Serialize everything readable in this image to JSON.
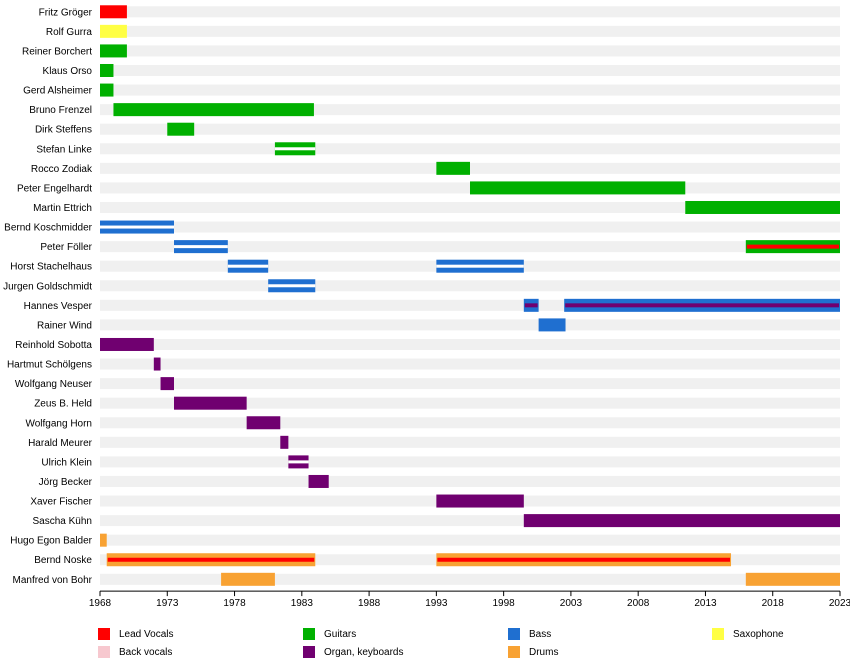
{
  "chart_data": {
    "type": "timeline",
    "title": "",
    "xlabel": "",
    "ylabel": "",
    "xlim": [
      1968,
      2023
    ],
    "x_ticks": [
      1968,
      1973,
      1978,
      1983,
      1988,
      1993,
      1998,
      2003,
      2008,
      2013,
      2018,
      2023
    ],
    "legend_position": "bottom",
    "roles": [
      {
        "id": "lead_vocals",
        "name": "Lead Vocals",
        "color": "#ff0000"
      },
      {
        "id": "back_vocals",
        "name": "Back vocals",
        "color": "#f7c8cf"
      },
      {
        "id": "guitars",
        "name": "Guitars",
        "color": "#00b000"
      },
      {
        "id": "organ",
        "name": "Organ, keyboards",
        "color": "#700070"
      },
      {
        "id": "bass",
        "name": "Bass",
        "color": "#1f6fd0"
      },
      {
        "id": "drums",
        "name": "Drums",
        "color": "#f8a233"
      },
      {
        "id": "saxophone",
        "name": "Saxophone",
        "color": "#ffff44"
      }
    ],
    "members": [
      {
        "name": "Fritz Gröger",
        "periods": [
          {
            "role": "lead_vocals",
            "start": 1968.0,
            "end": 1970.0
          }
        ]
      },
      {
        "name": "Rolf Gurra",
        "periods": [
          {
            "role": "saxophone",
            "start": 1968.0,
            "end": 1970.0
          }
        ]
      },
      {
        "name": "Reiner Borchert",
        "periods": [
          {
            "role": "guitars",
            "start": 1968.0,
            "end": 1970.0
          }
        ]
      },
      {
        "name": "Klaus Orso",
        "periods": [
          {
            "role": "guitars",
            "start": 1968.0,
            "end": 1969.0
          }
        ]
      },
      {
        "name": "Gerd Alsheimer",
        "periods": [
          {
            "role": "guitars",
            "start": 1968.0,
            "end": 1969.0
          }
        ]
      },
      {
        "name": "Bruno Frenzel",
        "periods": [
          {
            "role": "guitars",
            "start": 1969.0,
            "end": 1983.9
          }
        ]
      },
      {
        "name": "Dirk Steffens",
        "periods": [
          {
            "role": "guitars",
            "start": 1973.0,
            "end": 1975.0
          }
        ]
      },
      {
        "name": "Stefan Linke",
        "periods": [
          {
            "role": "guitars",
            "start": 1981.0,
            "end": 1984.0,
            "split": "guitars"
          }
        ]
      },
      {
        "name": "Rocco Zodiak",
        "periods": [
          {
            "role": "guitars",
            "start": 1993.0,
            "end": 1995.5
          }
        ]
      },
      {
        "name": "Peter Engelhardt",
        "periods": [
          {
            "role": "guitars",
            "start": 1995.5,
            "end": 2011.5
          }
        ]
      },
      {
        "name": "Martin Ettrich",
        "periods": [
          {
            "role": "guitars",
            "start": 2011.5,
            "end": 2023.5
          }
        ]
      },
      {
        "name": "Bernd Koschmidder",
        "periods": [
          {
            "role": "bass",
            "start": 1968.0,
            "end": 1973.5,
            "split": "bass"
          }
        ]
      },
      {
        "name": "Peter Föller",
        "periods": [
          {
            "role": "bass",
            "start": 1973.5,
            "end": 1977.5,
            "split": "bass"
          },
          {
            "role": "guitars",
            "start": 2016.0,
            "end": 2023.5,
            "stripe": "lead_vocals"
          }
        ]
      },
      {
        "name": "Horst Stachelhaus",
        "periods": [
          {
            "role": "bass",
            "start": 1977.5,
            "end": 1980.5,
            "split": "bass"
          },
          {
            "role": "bass",
            "start": 1993.0,
            "end": 1999.5,
            "split": "bass"
          }
        ]
      },
      {
        "name": "Jurgen Goldschmidt",
        "periods": [
          {
            "role": "bass",
            "start": 1980.5,
            "end": 1984.0,
            "split": "bass"
          }
        ]
      },
      {
        "name": "Hannes Vesper",
        "periods": [
          {
            "role": "bass",
            "start": 1999.5,
            "end": 2000.6,
            "stripe": "organ"
          },
          {
            "role": "bass",
            "start": 2002.5,
            "end": 2023.5,
            "stripe": "organ"
          }
        ]
      },
      {
        "name": "Rainer Wind",
        "periods": [
          {
            "role": "bass",
            "start": 2000.6,
            "end": 2002.6
          }
        ]
      },
      {
        "name": "Reinhold Sobotta",
        "periods": [
          {
            "role": "organ",
            "start": 1968.0,
            "end": 1972.0
          }
        ]
      },
      {
        "name": "Hartmut Schölgens",
        "periods": [
          {
            "role": "organ",
            "start": 1972.0,
            "end": 1972.5
          }
        ]
      },
      {
        "name": "Wolfgang Neuser",
        "periods": [
          {
            "role": "organ",
            "start": 1972.5,
            "end": 1973.5
          }
        ]
      },
      {
        "name": "Zeus B. Held",
        "periods": [
          {
            "role": "organ",
            "start": 1973.5,
            "end": 1978.9
          }
        ]
      },
      {
        "name": "Wolfgang Horn",
        "periods": [
          {
            "role": "organ",
            "start": 1978.9,
            "end": 1981.4
          }
        ]
      },
      {
        "name": "Harald Meurer",
        "periods": [
          {
            "role": "organ",
            "start": 1981.4,
            "end": 1982.0
          }
        ]
      },
      {
        "name": "Ulrich Klein",
        "periods": [
          {
            "role": "organ",
            "start": 1982.0,
            "end": 1983.5,
            "split": "organ"
          }
        ]
      },
      {
        "name": "Jörg Becker",
        "periods": [
          {
            "role": "organ",
            "start": 1983.5,
            "end": 1985.0
          }
        ]
      },
      {
        "name": "Xaver Fischer",
        "periods": [
          {
            "role": "organ",
            "start": 1993.0,
            "end": 1999.5
          }
        ]
      },
      {
        "name": "Sascha Kühn",
        "periods": [
          {
            "role": "organ",
            "start": 1999.5,
            "end": 2023.5
          }
        ]
      },
      {
        "name": "Hugo Egon Balder",
        "periods": [
          {
            "role": "drums",
            "start": 1968.0,
            "end": 1968.5
          }
        ]
      },
      {
        "name": "Bernd Noske",
        "periods": [
          {
            "role": "drums",
            "start": 1968.5,
            "end": 1984.0,
            "stripe": "lead_vocals"
          },
          {
            "role": "drums",
            "start": 1993.0,
            "end": 2014.9,
            "stripe": "lead_vocals"
          }
        ]
      },
      {
        "name": "Manfred von Bohr",
        "periods": [
          {
            "role": "drums",
            "start": 1977.0,
            "end": 1981.0
          },
          {
            "role": "drums",
            "start": 2016.0,
            "end": 2023.5
          }
        ]
      }
    ],
    "legend": [
      {
        "role": "lead_vocals",
        "label": "Lead Vocals"
      },
      {
        "role": "back_vocals",
        "label": "Back vocals"
      },
      {
        "role": "guitars",
        "label": "Guitars"
      },
      {
        "role": "organ",
        "label": "Organ, keyboards"
      },
      {
        "role": "bass",
        "label": "Bass"
      },
      {
        "role": "drums",
        "label": "Drums"
      },
      {
        "role": "saxophone",
        "label": "Saxophone"
      }
    ]
  }
}
